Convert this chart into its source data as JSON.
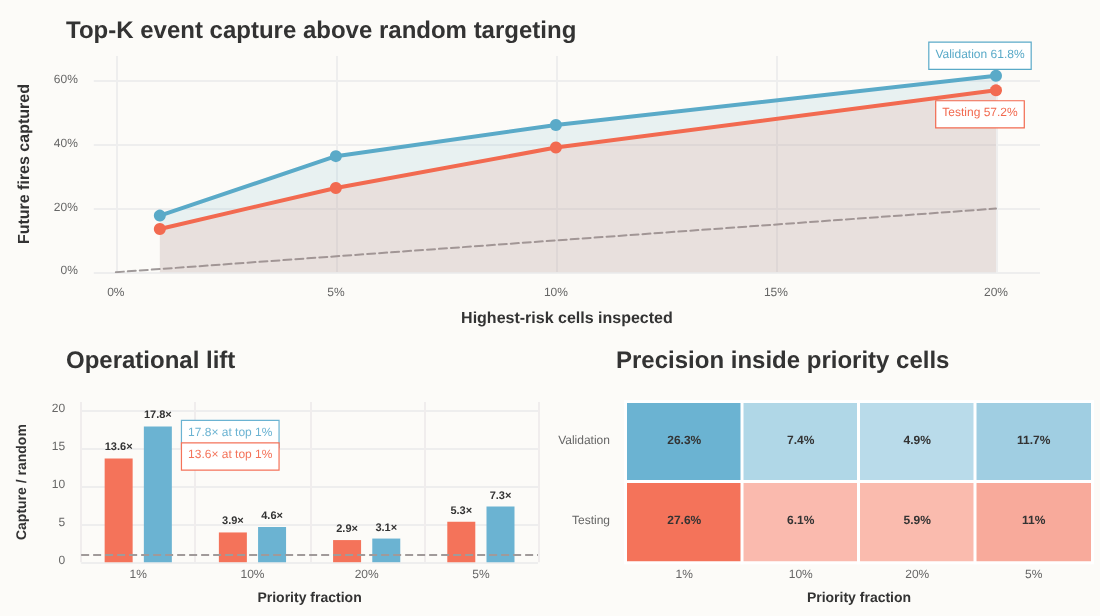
{
  "chart_data": [
    {
      "type": "line",
      "title": "Top-K event capture above random targeting",
      "xlabel": "Highest-risk cells inspected",
      "ylabel": "Future fires captured",
      "xlim": [
        -0.5,
        21
      ],
      "ylim": [
        0,
        68
      ],
      "xticks": [
        {
          "value": 0,
          "label": "0%"
        },
        {
          "value": 5,
          "label": "5%"
        },
        {
          "value": 10,
          "label": "10%"
        },
        {
          "value": 15,
          "label": "15%"
        },
        {
          "value": 20,
          "label": "20%"
        }
      ],
      "yticks": [
        {
          "value": 0,
          "label": "0%"
        },
        {
          "value": 20,
          "label": "20%"
        },
        {
          "value": 40,
          "label": "40%"
        },
        {
          "value": 60,
          "label": "60%"
        }
      ],
      "series": [
        {
          "type": "area",
          "color": "#5aaac8",
          "x": [
            1,
            5,
            10,
            20
          ],
          "values": [
            17.8,
            36.5,
            46.3,
            61.8
          ]
        },
        {
          "type": "area",
          "color": "#f26a50",
          "x": [
            1,
            5,
            10,
            20
          ],
          "values": [
            13.6,
            26.5,
            39.2,
            57.2
          ]
        },
        {
          "type": "line",
          "color": "#a09a9a",
          "line_style": "dashed",
          "marker": "none",
          "x": [
            0,
            20
          ],
          "values": [
            0,
            20
          ]
        }
      ],
      "annotations": [
        {
          "text": "Validation 61.8%",
          "x": 20,
          "y": 61.8
        },
        {
          "text": "Testing 57.2%",
          "x": 20,
          "y": 57.2
        }
      ],
      "marker": "circle",
      "grid": true
    },
    {
      "type": "bar",
      "title": "Operational lift",
      "xlabel": "Priority fraction",
      "ylabel": "Capture / random",
      "categories": [
        "1%",
        "10%",
        "20%",
        "5%"
      ],
      "ylim": [
        0,
        21
      ],
      "yticks": [
        0,
        5,
        10,
        15,
        20
      ],
      "series": [
        {
          "color": "#f4735a",
          "values": [
            13.6,
            3.9,
            2.9,
            5.3
          ],
          "value_labels": [
            "13.6×",
            "3.9×",
            "2.9×",
            "5.3×"
          ]
        },
        {
          "color": "#6bb3d2",
          "values": [
            17.8,
            4.6,
            3.1,
            7.3
          ],
          "value_labels": [
            "17.8×",
            "4.6×",
            "3.1×",
            "7.3×"
          ]
        }
      ],
      "ref_lines": [
        {
          "axis": "y",
          "value": 1,
          "color": "#a09a9a",
          "line_style": "dashed"
        }
      ],
      "annotations": [
        "17.8× at top 1%",
        "13.6× at top 1%"
      ],
      "grid": true
    },
    {
      "type": "heatmap",
      "title": "Precision inside priority cells",
      "xlabel": "Priority fraction",
      "categories": [
        "1%",
        "10%",
        "20%",
        "5%"
      ],
      "y_categories": [
        "Validation",
        "Testing"
      ],
      "cells": [
        [
          26.3,
          7.4,
          4.9,
          11.7
        ],
        [
          27.6,
          6.1,
          5.9,
          11
        ]
      ],
      "cell_labels": [
        [
          "26.3%",
          "7.4%",
          "4.9%",
          "11.7%"
        ],
        [
          "27.6%",
          "6.1%",
          "5.9%",
          "11%"
        ]
      ],
      "colors": [
        "#6bb3d2",
        "#f4735a"
      ]
    }
  ]
}
